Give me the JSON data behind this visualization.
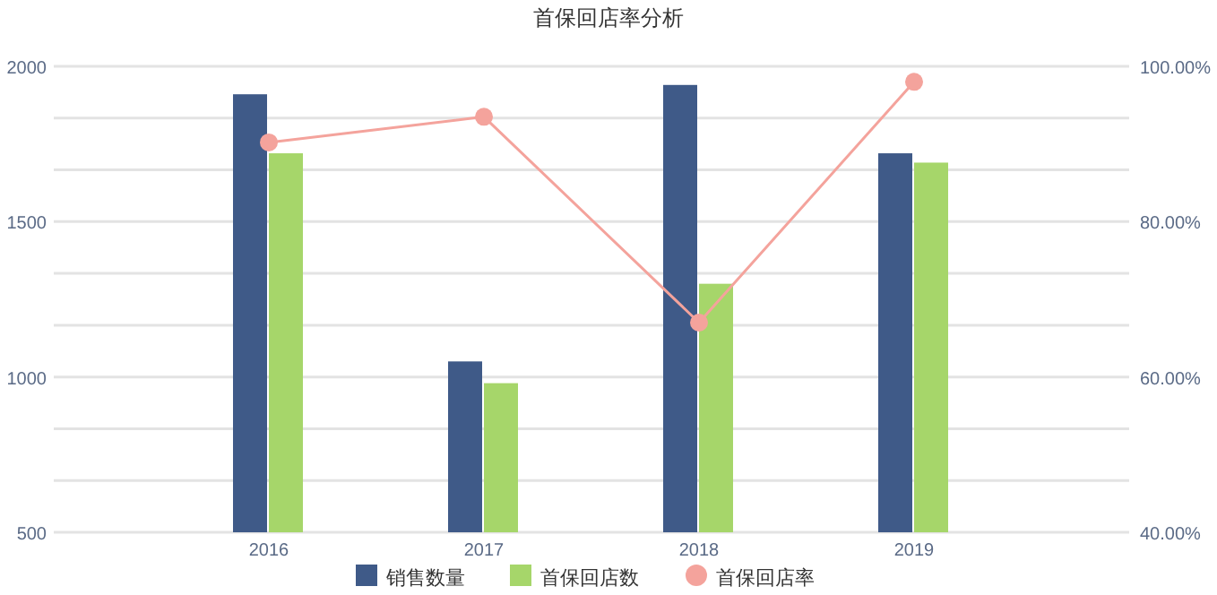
{
  "chart_data": {
    "type": "bar",
    "title": "首保回店率分析",
    "categories": [
      "2016",
      "2017",
      "2018",
      "2019"
    ],
    "series": [
      {
        "name": "销售数量",
        "color": "#3f5a88",
        "values": [
          1910,
          1050,
          1940,
          1720
        ]
      },
      {
        "name": "首保回店数",
        "color": "#a6d66a",
        "values": [
          1720,
          980,
          1300,
          1690
        ]
      },
      {
        "name": "首保回店率",
        "type": "line",
        "axis": "y2",
        "color": "#f4a39c",
        "values": [
          90.2,
          93.5,
          67,
          98
        ]
      }
    ],
    "ylim": [
      500,
      2000
    ],
    "yticks": [
      500,
      {
        "value": 666.7,
        "label": null
      },
      {
        "value": 833.3,
        "label": null
      },
      1000,
      {
        "value": 1166.7,
        "label": null
      },
      {
        "value": 1333.3,
        "label": null
      },
      1500,
      {
        "value": 1666.7,
        "label": null
      },
      {
        "value": 1833.3,
        "label": null
      },
      2000
    ],
    "y2lim": [
      40,
      100
    ],
    "y2ticks": [
      {
        "value": 40,
        "label": "40.00%"
      },
      {
        "value": 60,
        "label": "60.00%"
      },
      {
        "value": 80,
        "label": "80.00%"
      },
      {
        "value": 100,
        "label": "100.00%"
      }
    ],
    "grid": "y",
    "legend": "bottom",
    "marker": "circle"
  }
}
